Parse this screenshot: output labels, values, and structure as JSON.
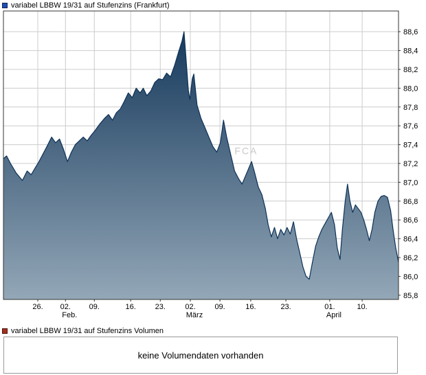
{
  "legend": {
    "price_label": "variabel LBBW 19/31 auf Stufenzins (Frankfurt)",
    "volume_label": "variabel LBBW 19/31 auf Stufenzins Volumen"
  },
  "volume": {
    "message": "keine Volumendaten vorhanden"
  },
  "watermark": "FCA",
  "colors": {
    "price_swatch": "#1d4eb8",
    "volume_swatch": "#a52f1e",
    "line": "#0d3156",
    "fill_top": "#16395c",
    "fill_bottom": "#93a7b7",
    "grid": "#cccccc",
    "frame": "#333333",
    "axis_text": "#000000",
    "watermark": "#c9c9c9"
  },
  "chart_data": {
    "type": "area",
    "title": "variabel LBBW 19/31 auf Stufenzins (Frankfurt)",
    "xlabel": "",
    "ylabel": "",
    "grid": true,
    "legend_position": "top-left",
    "ylim": [
      85.755,
      88.82
    ],
    "yticks": [
      {
        "v": 88.6,
        "label": "88,6"
      },
      {
        "v": 88.4,
        "label": "88,4"
      },
      {
        "v": 88.2,
        "label": "88,2"
      },
      {
        "v": 88.0,
        "label": "88,0"
      },
      {
        "v": 87.8,
        "label": "87,8"
      },
      {
        "v": 87.6,
        "label": "87,6"
      },
      {
        "v": 87.4,
        "label": "87,4"
      },
      {
        "v": 87.2,
        "label": "87,2"
      },
      {
        "v": 87.0,
        "label": "87,0"
      },
      {
        "v": 86.8,
        "label": "86,8"
      },
      {
        "v": 86.6,
        "label": "86,6"
      },
      {
        "v": 86.4,
        "label": "86,4"
      },
      {
        "v": 86.2,
        "label": "86,2"
      },
      {
        "v": 86.0,
        "label": "86,0"
      },
      {
        "v": 85.8,
        "label": "85,8"
      }
    ],
    "xticks": [
      {
        "pos": 0.087,
        "label": "26."
      },
      {
        "pos": 0.157,
        "label": "02.",
        "sub": "Feb."
      },
      {
        "pos": 0.23,
        "label": "09."
      },
      {
        "pos": 0.322,
        "label": "16."
      },
      {
        "pos": 0.397,
        "label": "23."
      },
      {
        "pos": 0.473,
        "label": "02.",
        "sub": "März"
      },
      {
        "pos": 0.548,
        "label": "09."
      },
      {
        "pos": 0.626,
        "label": "16."
      },
      {
        "pos": 0.715,
        "label": "23."
      },
      {
        "pos": 0.826,
        "label": "01.",
        "sub": "April"
      },
      {
        "pos": 0.908,
        "label": "10."
      }
    ],
    "points": [
      [
        0.0,
        87.25
      ],
      [
        0.008,
        87.28
      ],
      [
        0.018,
        87.2
      ],
      [
        0.032,
        87.1
      ],
      [
        0.048,
        87.02
      ],
      [
        0.06,
        87.12
      ],
      [
        0.07,
        87.08
      ],
      [
        0.08,
        87.15
      ],
      [
        0.09,
        87.22
      ],
      [
        0.1,
        87.3
      ],
      [
        0.11,
        87.38
      ],
      [
        0.122,
        87.48
      ],
      [
        0.132,
        87.42
      ],
      [
        0.142,
        87.46
      ],
      [
        0.152,
        87.35
      ],
      [
        0.162,
        87.22
      ],
      [
        0.172,
        87.32
      ],
      [
        0.182,
        87.4
      ],
      [
        0.192,
        87.44
      ],
      [
        0.202,
        87.48
      ],
      [
        0.212,
        87.44
      ],
      [
        0.222,
        87.5
      ],
      [
        0.232,
        87.55
      ],
      [
        0.244,
        87.62
      ],
      [
        0.256,
        87.68
      ],
      [
        0.266,
        87.72
      ],
      [
        0.276,
        87.66
      ],
      [
        0.286,
        87.74
      ],
      [
        0.296,
        87.78
      ],
      [
        0.306,
        87.86
      ],
      [
        0.316,
        87.95
      ],
      [
        0.326,
        87.9
      ],
      [
        0.336,
        88.0
      ],
      [
        0.346,
        87.95
      ],
      [
        0.354,
        88.0
      ],
      [
        0.363,
        87.92
      ],
      [
        0.373,
        87.97
      ],
      [
        0.383,
        88.06
      ],
      [
        0.393,
        88.1
      ],
      [
        0.403,
        88.09
      ],
      [
        0.413,
        88.16
      ],
      [
        0.423,
        88.12
      ],
      [
        0.433,
        88.24
      ],
      [
        0.443,
        88.38
      ],
      [
        0.452,
        88.5
      ],
      [
        0.457,
        88.6
      ],
      [
        0.462,
        88.32
      ],
      [
        0.468,
        87.98
      ],
      [
        0.472,
        87.88
      ],
      [
        0.478,
        88.1
      ],
      [
        0.482,
        88.15
      ],
      [
        0.49,
        87.82
      ],
      [
        0.5,
        87.68
      ],
      [
        0.51,
        87.58
      ],
      [
        0.52,
        87.48
      ],
      [
        0.53,
        87.38
      ],
      [
        0.54,
        87.32
      ],
      [
        0.549,
        87.42
      ],
      [
        0.557,
        87.66
      ],
      [
        0.565,
        87.48
      ],
      [
        0.575,
        87.3
      ],
      [
        0.585,
        87.12
      ],
      [
        0.595,
        87.04
      ],
      [
        0.604,
        86.98
      ],
      [
        0.612,
        87.06
      ],
      [
        0.62,
        87.14
      ],
      [
        0.628,
        87.22
      ],
      [
        0.636,
        87.1
      ],
      [
        0.645,
        86.95
      ],
      [
        0.654,
        86.87
      ],
      [
        0.663,
        86.72
      ],
      [
        0.67,
        86.55
      ],
      [
        0.678,
        86.42
      ],
      [
        0.686,
        86.52
      ],
      [
        0.694,
        86.4
      ],
      [
        0.702,
        86.5
      ],
      [
        0.71,
        86.44
      ],
      [
        0.718,
        86.52
      ],
      [
        0.726,
        86.45
      ],
      [
        0.734,
        86.58
      ],
      [
        0.742,
        86.4
      ],
      [
        0.75,
        86.25
      ],
      [
        0.758,
        86.1
      ],
      [
        0.766,
        86.0
      ],
      [
        0.774,
        85.97
      ],
      [
        0.782,
        86.15
      ],
      [
        0.79,
        86.32
      ],
      [
        0.798,
        86.42
      ],
      [
        0.806,
        86.5
      ],
      [
        0.814,
        86.56
      ],
      [
        0.822,
        86.62
      ],
      [
        0.83,
        86.68
      ],
      [
        0.838,
        86.55
      ],
      [
        0.845,
        86.3
      ],
      [
        0.852,
        86.18
      ],
      [
        0.858,
        86.5
      ],
      [
        0.865,
        86.8
      ],
      [
        0.871,
        86.98
      ],
      [
        0.877,
        86.8
      ],
      [
        0.884,
        86.68
      ],
      [
        0.891,
        86.76
      ],
      [
        0.898,
        86.72
      ],
      [
        0.905,
        86.68
      ],
      [
        0.912,
        86.6
      ],
      [
        0.919,
        86.5
      ],
      [
        0.926,
        86.38
      ],
      [
        0.933,
        86.5
      ],
      [
        0.94,
        86.68
      ],
      [
        0.948,
        86.8
      ],
      [
        0.956,
        86.85
      ],
      [
        0.964,
        86.86
      ],
      [
        0.972,
        86.84
      ],
      [
        0.98,
        86.7
      ],
      [
        0.986,
        86.5
      ],
      [
        0.993,
        86.3
      ],
      [
        1.0,
        86.15
      ]
    ]
  }
}
